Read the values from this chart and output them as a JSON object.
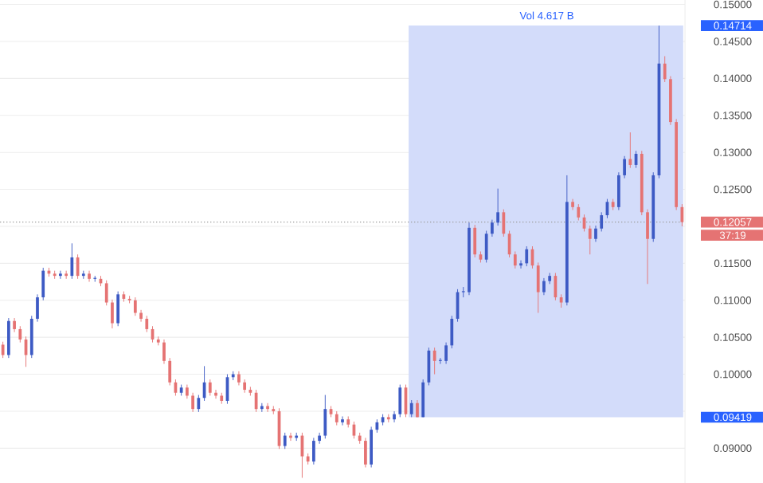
{
  "chart_data": {
    "type": "candlestick",
    "categories": [
      null,
      null,
      null,
      null,
      null,
      null,
      null,
      null,
      null,
      null,
      null,
      null,
      null,
      null,
      null,
      null,
      null,
      null,
      null,
      null,
      null,
      null,
      null,
      null,
      null,
      null,
      null,
      null,
      null,
      null,
      null,
      null,
      null,
      null,
      null,
      null,
      null,
      null,
      null,
      null,
      null,
      null,
      null,
      null,
      null,
      null,
      null,
      null,
      null,
      null,
      null,
      null,
      null,
      null,
      null,
      null,
      null,
      null,
      null,
      null,
      null,
      null,
      null,
      null,
      null,
      null,
      null,
      null,
      null,
      null,
      null,
      null,
      null,
      null,
      null,
      null,
      null,
      null,
      null,
      null,
      null,
      null,
      null,
      null,
      null,
      null,
      null,
      null,
      null,
      null,
      null,
      null,
      null,
      null,
      null,
      null,
      null,
      null,
      null,
      null,
      null,
      null,
      null,
      null,
      null,
      null,
      null,
      null,
      null,
      null,
      null,
      null,
      null,
      null,
      null,
      null,
      null,
      null,
      null
    ],
    "ohlc": [
      [
        0.104,
        0.1044,
        0.1022,
        0.1026
      ],
      [
        0.1026,
        0.1076,
        0.1022,
        0.1072
      ],
      [
        0.1072,
        0.1076,
        0.1057,
        0.1061
      ],
      [
        0.1061,
        0.1065,
        0.1043,
        0.1047
      ],
      [
        0.1047,
        0.1051,
        0.101,
        0.1026
      ],
      [
        0.1026,
        0.1079,
        0.1022,
        0.1075
      ],
      [
        0.1075,
        0.1108,
        0.1071,
        0.1104
      ],
      [
        0.1104,
        0.1144,
        0.11,
        0.114
      ],
      [
        0.114,
        0.1144,
        0.1132,
        0.1136
      ],
      [
        0.1136,
        0.114,
        0.1129,
        0.1133
      ],
      [
        0.1133,
        0.114,
        0.1129,
        0.1136
      ],
      [
        0.1136,
        0.114,
        0.1129,
        0.1133
      ],
      [
        0.1133,
        0.1177,
        0.1129,
        0.1158
      ],
      [
        0.1158,
        0.1162,
        0.1129,
        0.1133
      ],
      [
        0.1133,
        0.114,
        0.1129,
        0.1136
      ],
      [
        0.1136,
        0.114,
        0.1125,
        0.1129
      ],
      [
        0.1129,
        0.1133,
        0.1125,
        0.1129
      ],
      [
        0.1129,
        0.1133,
        0.1119,
        0.1123
      ],
      [
        0.1123,
        0.1127,
        0.1093,
        0.1097
      ],
      [
        0.1097,
        0.1101,
        0.1062,
        0.1069
      ],
      [
        0.1069,
        0.1112,
        0.1065,
        0.1108
      ],
      [
        0.1108,
        0.1112,
        0.1098,
        0.1102
      ],
      [
        0.1102,
        0.1106,
        0.1096,
        0.11
      ],
      [
        0.11,
        0.1104,
        0.1079,
        0.1083
      ],
      [
        0.1083,
        0.1087,
        0.1071,
        0.1075
      ],
      [
        0.1075,
        0.1079,
        0.1057,
        0.1061
      ],
      [
        0.1061,
        0.1065,
        0.1043,
        0.1047
      ],
      [
        0.1047,
        0.1051,
        0.1039,
        0.1043
      ],
      [
        0.1043,
        0.1047,
        0.1014,
        0.1018
      ],
      [
        0.1018,
        0.1022,
        0.0985,
        0.0989
      ],
      [
        0.0989,
        0.0993,
        0.0971,
        0.0975
      ],
      [
        0.0975,
        0.0986,
        0.0971,
        0.0982
      ],
      [
        0.0982,
        0.0986,
        0.0967,
        0.0971
      ],
      [
        0.0971,
        0.0975,
        0.0949,
        0.0953
      ],
      [
        0.0953,
        0.0972,
        0.0949,
        0.0968
      ],
      [
        0.0968,
        0.1011,
        0.0964,
        0.0989
      ],
      [
        0.0989,
        0.0993,
        0.0971,
        0.0975
      ],
      [
        0.0975,
        0.0979,
        0.0967,
        0.0971
      ],
      [
        0.0971,
        0.0975,
        0.096,
        0.0964
      ],
      [
        0.0964,
        0.1,
        0.096,
        0.0996
      ],
      [
        0.0996,
        0.1004,
        0.0992,
        0.1
      ],
      [
        0.1,
        0.1004,
        0.0985,
        0.0989
      ],
      [
        0.0989,
        0.0993,
        0.0975,
        0.0979
      ],
      [
        0.0979,
        0.0983,
        0.0971,
        0.0975
      ],
      [
        0.0975,
        0.0979,
        0.0949,
        0.0953
      ],
      [
        0.0953,
        0.0961,
        0.0949,
        0.0957
      ],
      [
        0.0957,
        0.0961,
        0.0949,
        0.0953
      ],
      [
        0.0953,
        0.0957,
        0.0946,
        0.095
      ],
      [
        0.095,
        0.0954,
        0.0899,
        0.0903
      ],
      [
        0.0903,
        0.0921,
        0.0899,
        0.0917
      ],
      [
        0.0917,
        0.0921,
        0.091,
        0.0914
      ],
      [
        0.0914,
        0.0921,
        0.091,
        0.0917
      ],
      [
        0.0917,
        0.0921,
        0.086,
        0.0889
      ],
      [
        0.0889,
        0.0893,
        0.0878,
        0.0882
      ],
      [
        0.0882,
        0.0914,
        0.0878,
        0.091
      ],
      [
        0.091,
        0.0921,
        0.0906,
        0.0917
      ],
      [
        0.0917,
        0.0972,
        0.0913,
        0.0953
      ],
      [
        0.0953,
        0.0957,
        0.0942,
        0.0946
      ],
      [
        0.0946,
        0.095,
        0.0931,
        0.0935
      ],
      [
        0.0935,
        0.0943,
        0.0931,
        0.0939
      ],
      [
        0.0939,
        0.0943,
        0.0928,
        0.0932
      ],
      [
        0.0932,
        0.0936,
        0.0913,
        0.0917
      ],
      [
        0.0917,
        0.0921,
        0.0906,
        0.091
      ],
      [
        0.091,
        0.0914,
        0.0874,
        0.0878
      ],
      [
        0.0878,
        0.0929,
        0.0874,
        0.0925
      ],
      [
        0.0925,
        0.0939,
        0.0921,
        0.0935
      ],
      [
        0.0935,
        0.0946,
        0.0931,
        0.0942
      ],
      [
        0.0942,
        0.0946,
        0.0935,
        0.0939
      ],
      [
        0.0939,
        0.095,
        0.0935,
        0.0946
      ],
      [
        0.0946,
        0.0986,
        0.0942,
        0.0982
      ],
      [
        0.0982,
        0.0986,
        0.0942,
        0.0946
      ],
      [
        0.0946,
        0.0965,
        0.0942,
        0.0961
      ],
      [
        0.0961,
        0.0965,
        0.09419,
        0.0942
      ],
      [
        0.0942,
        0.0993,
        0.0942,
        0.0989
      ],
      [
        0.0989,
        0.1036,
        0.0985,
        0.1032
      ],
      [
        0.1032,
        0.1036,
        0.1,
        0.1018
      ],
      [
        0.1018,
        0.1022,
        0.1014,
        0.1018
      ],
      [
        0.1018,
        0.1043,
        0.1014,
        0.1039
      ],
      [
        0.1039,
        0.1079,
        0.1035,
        0.1075
      ],
      [
        0.1075,
        0.1115,
        0.1071,
        0.1111
      ],
      [
        0.1111,
        0.1118,
        0.1104,
        0.1111
      ],
      [
        0.1111,
        0.1205,
        0.1107,
        0.1198
      ],
      [
        0.1198,
        0.1202,
        0.1158,
        0.1162
      ],
      [
        0.1162,
        0.1166,
        0.1151,
        0.1155
      ],
      [
        0.1155,
        0.1194,
        0.1151,
        0.119
      ],
      [
        0.119,
        0.1209,
        0.1186,
        0.1205
      ],
      [
        0.1205,
        0.1251,
        0.1201,
        0.1219
      ],
      [
        0.1219,
        0.1223,
        0.1186,
        0.119
      ],
      [
        0.119,
        0.1194,
        0.1158,
        0.1162
      ],
      [
        0.1162,
        0.1166,
        0.1143,
        0.1147
      ],
      [
        0.1147,
        0.1154,
        0.1143,
        0.115
      ],
      [
        0.115,
        0.1173,
        0.1146,
        0.1169
      ],
      [
        0.1169,
        0.1173,
        0.1143,
        0.1147
      ],
      [
        0.1147,
        0.1151,
        0.1083,
        0.1111
      ],
      [
        0.1111,
        0.113,
        0.1107,
        0.1126
      ],
      [
        0.1126,
        0.1137,
        0.1122,
        0.1133
      ],
      [
        0.1133,
        0.1137,
        0.11,
        0.1104
      ],
      [
        0.1104,
        0.1108,
        0.109,
        0.1097
      ],
      [
        0.1097,
        0.1269,
        0.1093,
        0.1233
      ],
      [
        0.1233,
        0.1237,
        0.1222,
        0.1226
      ],
      [
        0.1226,
        0.123,
        0.1208,
        0.1212
      ],
      [
        0.1212,
        0.1216,
        0.1193,
        0.1197
      ],
      [
        0.1197,
        0.1201,
        0.1162,
        0.1183
      ],
      [
        0.1183,
        0.1201,
        0.1179,
        0.1197
      ],
      [
        0.1197,
        0.1219,
        0.1193,
        0.1215
      ],
      [
        0.1215,
        0.1237,
        0.1211,
        0.1233
      ],
      [
        0.1233,
        0.1237,
        0.1222,
        0.1226
      ],
      [
        0.1226,
        0.1273,
        0.1222,
        0.1269
      ],
      [
        0.1269,
        0.1295,
        0.1265,
        0.1291
      ],
      [
        0.1291,
        0.1327,
        0.1279,
        0.1283
      ],
      [
        0.1283,
        0.1302,
        0.1279,
        0.1298
      ],
      [
        0.1298,
        0.1302,
        0.1215,
        0.1219
      ],
      [
        0.1219,
        0.1223,
        0.1122,
        0.1183
      ],
      [
        0.1183,
        0.1273,
        0.1179,
        0.1269
      ],
      [
        0.1269,
        0.14714,
        0.1265,
        0.142
      ],
      [
        0.142,
        0.143,
        0.1395,
        0.1399
      ],
      [
        0.1399,
        0.1403,
        0.1337,
        0.1341
      ],
      [
        0.1341,
        0.1345,
        0.1222,
        0.1226
      ],
      [
        0.1226,
        0.123,
        0.12,
        0.12057
      ]
    ],
    "ylim": [
      0.0853,
      0.1506
    ],
    "yticks": [
      {
        "value": 0.09,
        "label": "0.09000"
      },
      {
        "value": 0.095,
        "label": null
      },
      {
        "value": 0.1,
        "label": "0.10000"
      },
      {
        "value": 0.105,
        "label": "0.10500"
      },
      {
        "value": 0.11,
        "label": "0.11000"
      },
      {
        "value": 0.115,
        "label": "0.11500"
      },
      {
        "value": 0.12,
        "label": null
      },
      {
        "value": 0.125,
        "label": "0.12500"
      },
      {
        "value": 0.13,
        "label": "0.13000"
      },
      {
        "value": 0.135,
        "label": "0.13500"
      },
      {
        "value": 0.14,
        "label": "0.14000"
      },
      {
        "value": 0.145,
        "label": "0.14500"
      },
      {
        "value": 0.15,
        "label": "0.15000"
      }
    ],
    "grid": "y",
    "bands": [
      {
        "axis": "y",
        "from": 0.09419,
        "to": 0.14714,
        "color": "#d3dcfa"
      }
    ],
    "ref_lines": [
      {
        "axis": "y",
        "value": 0.12057,
        "label": "0.12057",
        "color": "#9e9e9e",
        "line_style": "dotted"
      }
    ],
    "annotations": [
      "0.14714",
      "0.09419",
      "Vol 4.617 B",
      "37:19"
    ]
  }
}
